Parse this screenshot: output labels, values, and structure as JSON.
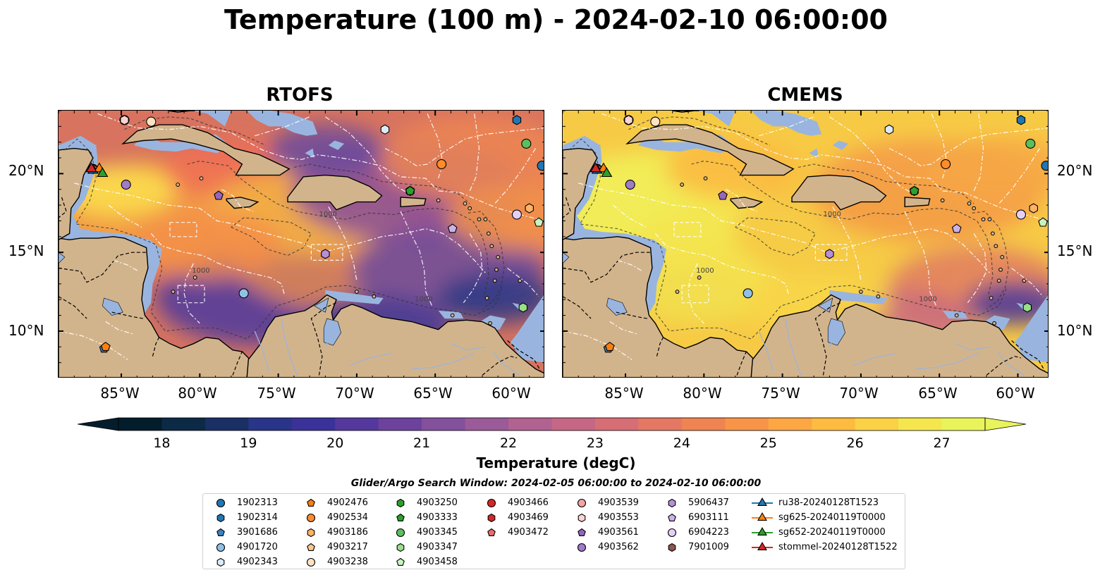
{
  "title": "Temperature (100 m) - 2024-02-10 06:00:00",
  "panels": [
    {
      "title": "RTOFS"
    },
    {
      "title": "CMEMS"
    }
  ],
  "lon_ticks": [
    "85°W",
    "80°W",
    "75°W",
    "70°W",
    "65°W",
    "60°W"
  ],
  "lat_ticks": [
    "20°N",
    "15°N",
    "10°N"
  ],
  "map_extent": {
    "lon": [
      -89,
      -58
    ],
    "lat": [
      7,
      24
    ]
  },
  "colorbar": {
    "label": "Temperature (degC)",
    "ticks": [
      "18",
      "19",
      "20",
      "21",
      "22",
      "23",
      "24",
      "25",
      "26",
      "27"
    ],
    "range": [
      18,
      27
    ],
    "colors": [
      "#041d2c",
      "#0c2a45",
      "#1a2f63",
      "#2a3489",
      "#3a3299",
      "#54389d",
      "#6c429d",
      "#83509c",
      "#9b5a98",
      "#b16291",
      "#c56785",
      "#d66e75",
      "#e47863",
      "#ef8452",
      "#f79447",
      "#fca743",
      "#fdbb40",
      "#fbd145",
      "#f5e64e",
      "#e9f45b"
    ],
    "extend": "both"
  },
  "contour_labels": [
    "1000",
    "1000",
    "1000"
  ],
  "legend": {
    "title": "Glider/Argo Search Window: 2024-02-05 06:00:00 to 2024-02-10 06:00:00",
    "items": [
      {
        "label": "1902313",
        "marker": "circle",
        "color": "#1f77b4"
      },
      {
        "label": "1902314",
        "marker": "hexagon",
        "color": "#1f77b4"
      },
      {
        "label": "3901686",
        "marker": "pentagon",
        "color": "#3b84c4"
      },
      {
        "label": "4901720",
        "marker": "circle",
        "color": "#8fc1e6"
      },
      {
        "label": "4902343",
        "marker": "hexagon",
        "color": "#dbecf8"
      },
      {
        "label": "4902476",
        "marker": "pentagon",
        "color": "#ff7f0e"
      },
      {
        "label": "4902534",
        "marker": "circle",
        "color": "#ff8c2a"
      },
      {
        "label": "4903186",
        "marker": "hexagon",
        "color": "#ffb366"
      },
      {
        "label": "4903217",
        "marker": "pentagon",
        "color": "#ffc78e"
      },
      {
        "label": "4903238",
        "marker": "circle",
        "color": "#ffe2c2"
      },
      {
        "label": "4903250",
        "marker": "hexagon",
        "color": "#2ca02c"
      },
      {
        "label": "4903333",
        "marker": "pentagon",
        "color": "#2ca02c"
      },
      {
        "label": "4903345",
        "marker": "circle",
        "color": "#5cbf5c"
      },
      {
        "label": "4903347",
        "marker": "hexagon",
        "color": "#98df8a"
      },
      {
        "label": "4903458",
        "marker": "pentagon",
        "color": "#c7f3c0"
      },
      {
        "label": "4903466",
        "marker": "circle",
        "color": "#d62728"
      },
      {
        "label": "4903469",
        "marker": "hexagon",
        "color": "#d62728"
      },
      {
        "label": "4903472",
        "marker": "pentagon",
        "color": "#ee6b6b"
      },
      {
        "label": "4903539",
        "marker": "circle",
        "color": "#f4a3a3"
      },
      {
        "label": "4903553",
        "marker": "hexagon",
        "color": "#fcd3d3"
      },
      {
        "label": "4903561",
        "marker": "pentagon",
        "color": "#9467bd"
      },
      {
        "label": "4903562",
        "marker": "circle",
        "color": "#9f7bc9"
      },
      {
        "label": "5906437",
        "marker": "hexagon",
        "color": "#b58fd8"
      },
      {
        "label": "6903111",
        "marker": "pentagon",
        "color": "#cdb2ea"
      },
      {
        "label": "6904223",
        "marker": "circle",
        "color": "#e5cff6"
      },
      {
        "label": "7901009",
        "marker": "hexagon",
        "color": "#8c564b"
      },
      {
        "label": "ru38-20240128T1523",
        "marker": "triangle",
        "color": "#1f77b4"
      },
      {
        "label": "sg625-20240119T0000",
        "marker": "triangle",
        "color": "#ff7f0e"
      },
      {
        "label": "sg652-20240119T0000",
        "marker": "triangle",
        "color": "#2ca02c"
      },
      {
        "label": "stommel-20240128T1522",
        "marker": "triangle",
        "color": "#d62728"
      }
    ]
  },
  "observations": [
    {
      "id": "1902313",
      "lon": -58.2,
      "lat": 20.5
    },
    {
      "id": "1902314",
      "lon": -59.8,
      "lat": 23.4
    },
    {
      "id": "3901686",
      "lon": -86.1,
      "lat": 8.9
    },
    {
      "id": "4901720",
      "lon": -77.2,
      "lat": 12.4
    },
    {
      "id": "4902343",
      "lon": -68.2,
      "lat": 22.8
    },
    {
      "id": "4902476",
      "lon": -86.0,
      "lat": 9.0
    },
    {
      "id": "4902534",
      "lon": -64.6,
      "lat": 20.6
    },
    {
      "id": "4903186",
      "lon": -59.0,
      "lat": 17.8
    },
    {
      "id": "4903217",
      "lon": -83.1,
      "lat": 23.3
    },
    {
      "id": "4903238",
      "lon": -83.1,
      "lat": 23.3
    },
    {
      "id": "4903250",
      "lon": -66.6,
      "lat": 18.9
    },
    {
      "id": "4903333",
      "lon": -66.6,
      "lat": 18.9
    },
    {
      "id": "4903345",
      "lon": -59.2,
      "lat": 21.9
    },
    {
      "id": "4903347",
      "lon": -59.4,
      "lat": 11.5
    },
    {
      "id": "4903458",
      "lon": -58.4,
      "lat": 16.9
    },
    {
      "id": "4903466",
      "lon": -86.8,
      "lat": 20.3
    },
    {
      "id": "4903469",
      "lon": -86.8,
      "lat": 20.3
    },
    {
      "id": "4903472",
      "lon": -84.8,
      "lat": 23.4
    },
    {
      "id": "4903539",
      "lon": -84.8,
      "lat": 23.4
    },
    {
      "id": "4903553",
      "lon": -84.8,
      "lat": 23.4
    },
    {
      "id": "4903561",
      "lon": -78.8,
      "lat": 18.6
    },
    {
      "id": "4903562",
      "lon": -84.7,
      "lat": 19.3
    },
    {
      "id": "5906437",
      "lon": -72.0,
      "lat": 14.9
    },
    {
      "id": "6903111",
      "lon": -63.9,
      "lat": 16.5
    },
    {
      "id": "6904223",
      "lon": -59.8,
      "lat": 17.4
    },
    {
      "id": "7901009",
      "lon": -86.8,
      "lat": 20.3
    },
    {
      "id": "ru38-20240128T1523",
      "lon": -86.8,
      "lat": 20.2
    },
    {
      "id": "sg625-20240119T0000",
      "lon": -86.4,
      "lat": 20.3
    },
    {
      "id": "sg652-20240119T0000",
      "lon": -86.2,
      "lat": 20.0
    },
    {
      "id": "stommel-20240128T1522",
      "lon": -86.9,
      "lat": 20.3
    }
  ],
  "colors": {
    "land": "#d2b48c",
    "shelf": "#99b5df",
    "ocean_deep": "#041d2c",
    "eez": "#ffffff"
  }
}
